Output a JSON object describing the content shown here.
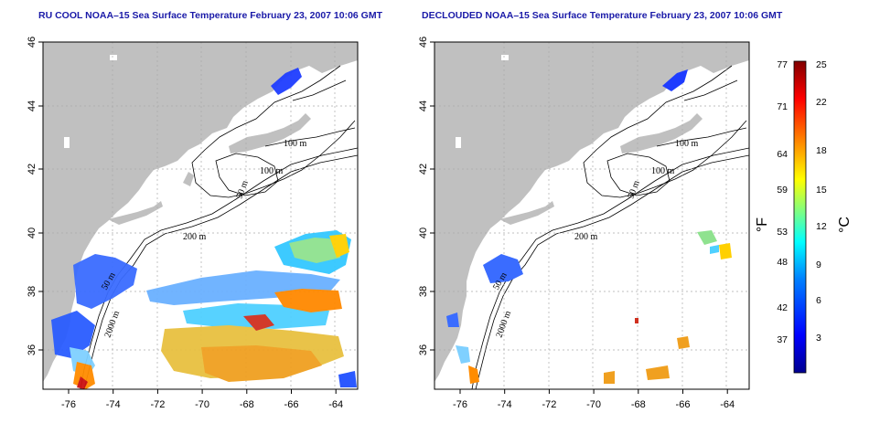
{
  "titles": {
    "left": "RU COOL NOAA–15 Sea Surface Temperature February 23, 2007 10:06 GMT",
    "right": "DECLOUDED NOAA–15 Sea Surface Temperature February 23, 2007 10:06 GMT"
  },
  "axes": {
    "x_ticks": [
      "-76",
      "-74",
      "-72",
      "-70",
      "-68",
      "-66",
      "-64"
    ],
    "y_ticks": [
      "36",
      "38",
      "40",
      "42",
      "44",
      "46"
    ]
  },
  "contour_labels": [
    "100 m",
    "100 m",
    "50 m",
    "200 m",
    "50 m",
    "2000 m"
  ],
  "colorbar": {
    "fahrenheit_labels": [
      "77",
      "71",
      "64",
      "59",
      "53",
      "48",
      "42",
      "37"
    ],
    "celsius_labels": [
      "25",
      "22",
      "18",
      "15",
      "12",
      "9",
      "6",
      "3"
    ],
    "fahrenheit_unit": "°F",
    "celsius_unit": "°C",
    "colors": [
      "#00008f",
      "#0000ff",
      "#0080ff",
      "#00ffff",
      "#80ff80",
      "#ffff00",
      "#ff8000",
      "#ff0000",
      "#800000"
    ]
  },
  "colors": {
    "land": "#c0c0c0",
    "title": "#1a1aa8"
  }
}
